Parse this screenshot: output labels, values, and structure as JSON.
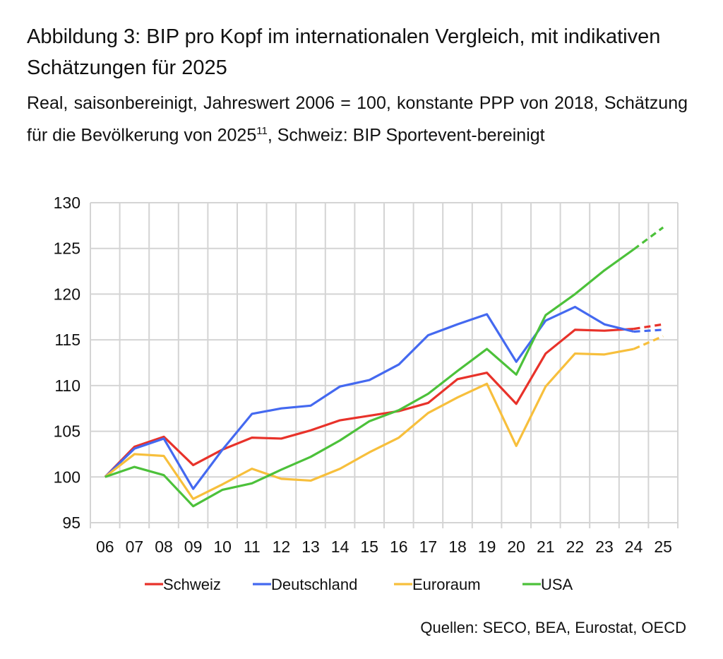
{
  "chart_data": {
    "type": "line",
    "title": "Abbildung 3: BIP pro Kopf im internationalen Vergleich, mit indikativen Schätzungen für 2025",
    "subtitle": "Real, saisonbereinigt, Jahreswert 2006 = 100, konstante PPP von 2018, Schätzung für die Bevölkerung von 2025",
    "subtitle_footnote": "11",
    "subtitle_end": ", Schweiz: BIP Sportevent-bereinigt",
    "source": "Quellen: SECO, BEA, Eurostat, OECD",
    "categories": [
      "06",
      "07",
      "08",
      "09",
      "10",
      "11",
      "12",
      "13",
      "14",
      "15",
      "16",
      "17",
      "18",
      "19",
      "20",
      "21",
      "22",
      "23",
      "24",
      "25"
    ],
    "ylim": [
      95,
      130
    ],
    "yticks": [
      95,
      100,
      105,
      110,
      115,
      120,
      125,
      130
    ],
    "grid": true,
    "legend_position": "bottom",
    "estimate_dashed_from": "24",
    "series": [
      {
        "name": "Schweiz",
        "color": "#e8322a",
        "values": [
          100,
          103.3,
          104.4,
          101.3,
          103.0,
          104.3,
          104.2,
          105.1,
          106.2,
          106.7,
          107.2,
          108.1,
          110.7,
          111.4,
          108.0,
          113.5,
          116.1,
          116.0,
          116.2,
          116.7
        ]
      },
      {
        "name": "Deutschland",
        "color": "#4469f0",
        "values": [
          100,
          103.1,
          104.2,
          98.7,
          103.0,
          106.9,
          107.5,
          107.8,
          109.9,
          110.6,
          112.3,
          115.5,
          116.7,
          117.8,
          112.6,
          117.1,
          118.6,
          116.7,
          115.9,
          116.1
        ]
      },
      {
        "name": "Euroraum",
        "color": "#f7bf3c",
        "values": [
          100,
          102.5,
          102.3,
          97.6,
          99.2,
          100.9,
          99.8,
          99.6,
          100.9,
          102.7,
          104.3,
          107.0,
          108.7,
          110.2,
          103.4,
          109.9,
          113.5,
          113.4,
          114.0,
          115.4
        ]
      },
      {
        "name": "USA",
        "color": "#4cc13a",
        "values": [
          100,
          101.1,
          100.2,
          96.8,
          98.6,
          99.3,
          100.8,
          102.2,
          104.0,
          106.1,
          107.3,
          109.1,
          111.6,
          114.0,
          111.2,
          117.7,
          120.0,
          122.6,
          124.9,
          127.3
        ]
      }
    ]
  }
}
